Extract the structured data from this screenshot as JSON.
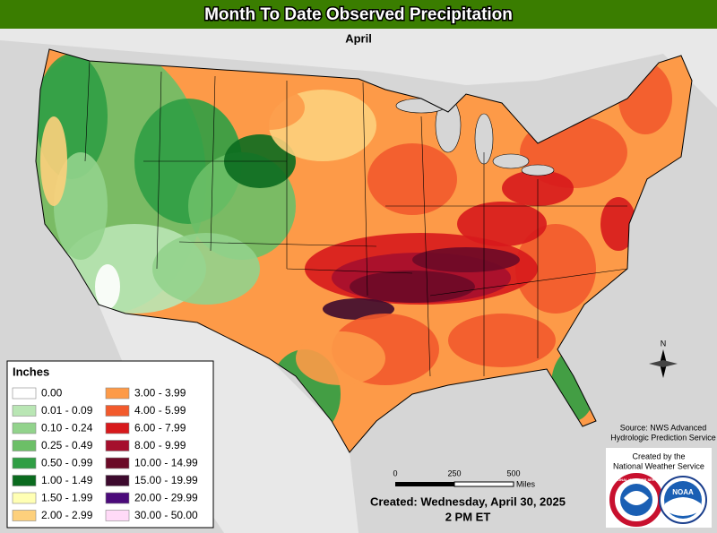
{
  "header": {
    "title": "Month To Date Observed Precipitation",
    "subtitle": "April"
  },
  "legend": {
    "title": "Inches",
    "items": [
      {
        "label": "0.00",
        "color": "#ffffff"
      },
      {
        "label": "0.01 - 0.09",
        "color": "#b9e6b4"
      },
      {
        "label": "0.10 - 0.24",
        "color": "#92d38c"
      },
      {
        "label": "0.25 - 0.49",
        "color": "#6cbf67"
      },
      {
        "label": "0.50 - 0.99",
        "color": "#2f9e44"
      },
      {
        "label": "1.00 - 1.49",
        "color": "#0b6b1f"
      },
      {
        "label": "1.50 - 1.99",
        "color": "#ffffb4"
      },
      {
        "label": "2.00 - 2.99",
        "color": "#fdd07c"
      },
      {
        "label": "3.00 - 3.99",
        "color": "#fd9a48"
      },
      {
        "label": "4.00 - 5.99",
        "color": "#f25a2c"
      },
      {
        "label": "6.00 - 7.99",
        "color": "#d7191c"
      },
      {
        "label": "8.00 - 9.99",
        "color": "#a50f2d"
      },
      {
        "label": "10.00 - 14.99",
        "color": "#6b0a27"
      },
      {
        "label": "15.00 - 19.99",
        "color": "#3d0a2e"
      },
      {
        "label": "20.00 - 29.99",
        "color": "#4b0a7a"
      },
      {
        "label": "30.00 - 50.00",
        "color": "#ffdaf7"
      }
    ]
  },
  "scale": {
    "labels": [
      "0",
      "250",
      "500"
    ],
    "unit": "Miles"
  },
  "compass": "N",
  "source": [
    "Source: NWS Advanced",
    "Hydrologic Prediction Service"
  ],
  "credit": [
    "Created by the",
    "National Weather Service"
  ],
  "created": [
    "Created: Wednesday, April 30, 2025",
    "2 PM ET"
  ],
  "logos": {
    "nws": "NATIONAL WEATHER SERVICE",
    "noaa": "NOAA"
  }
}
